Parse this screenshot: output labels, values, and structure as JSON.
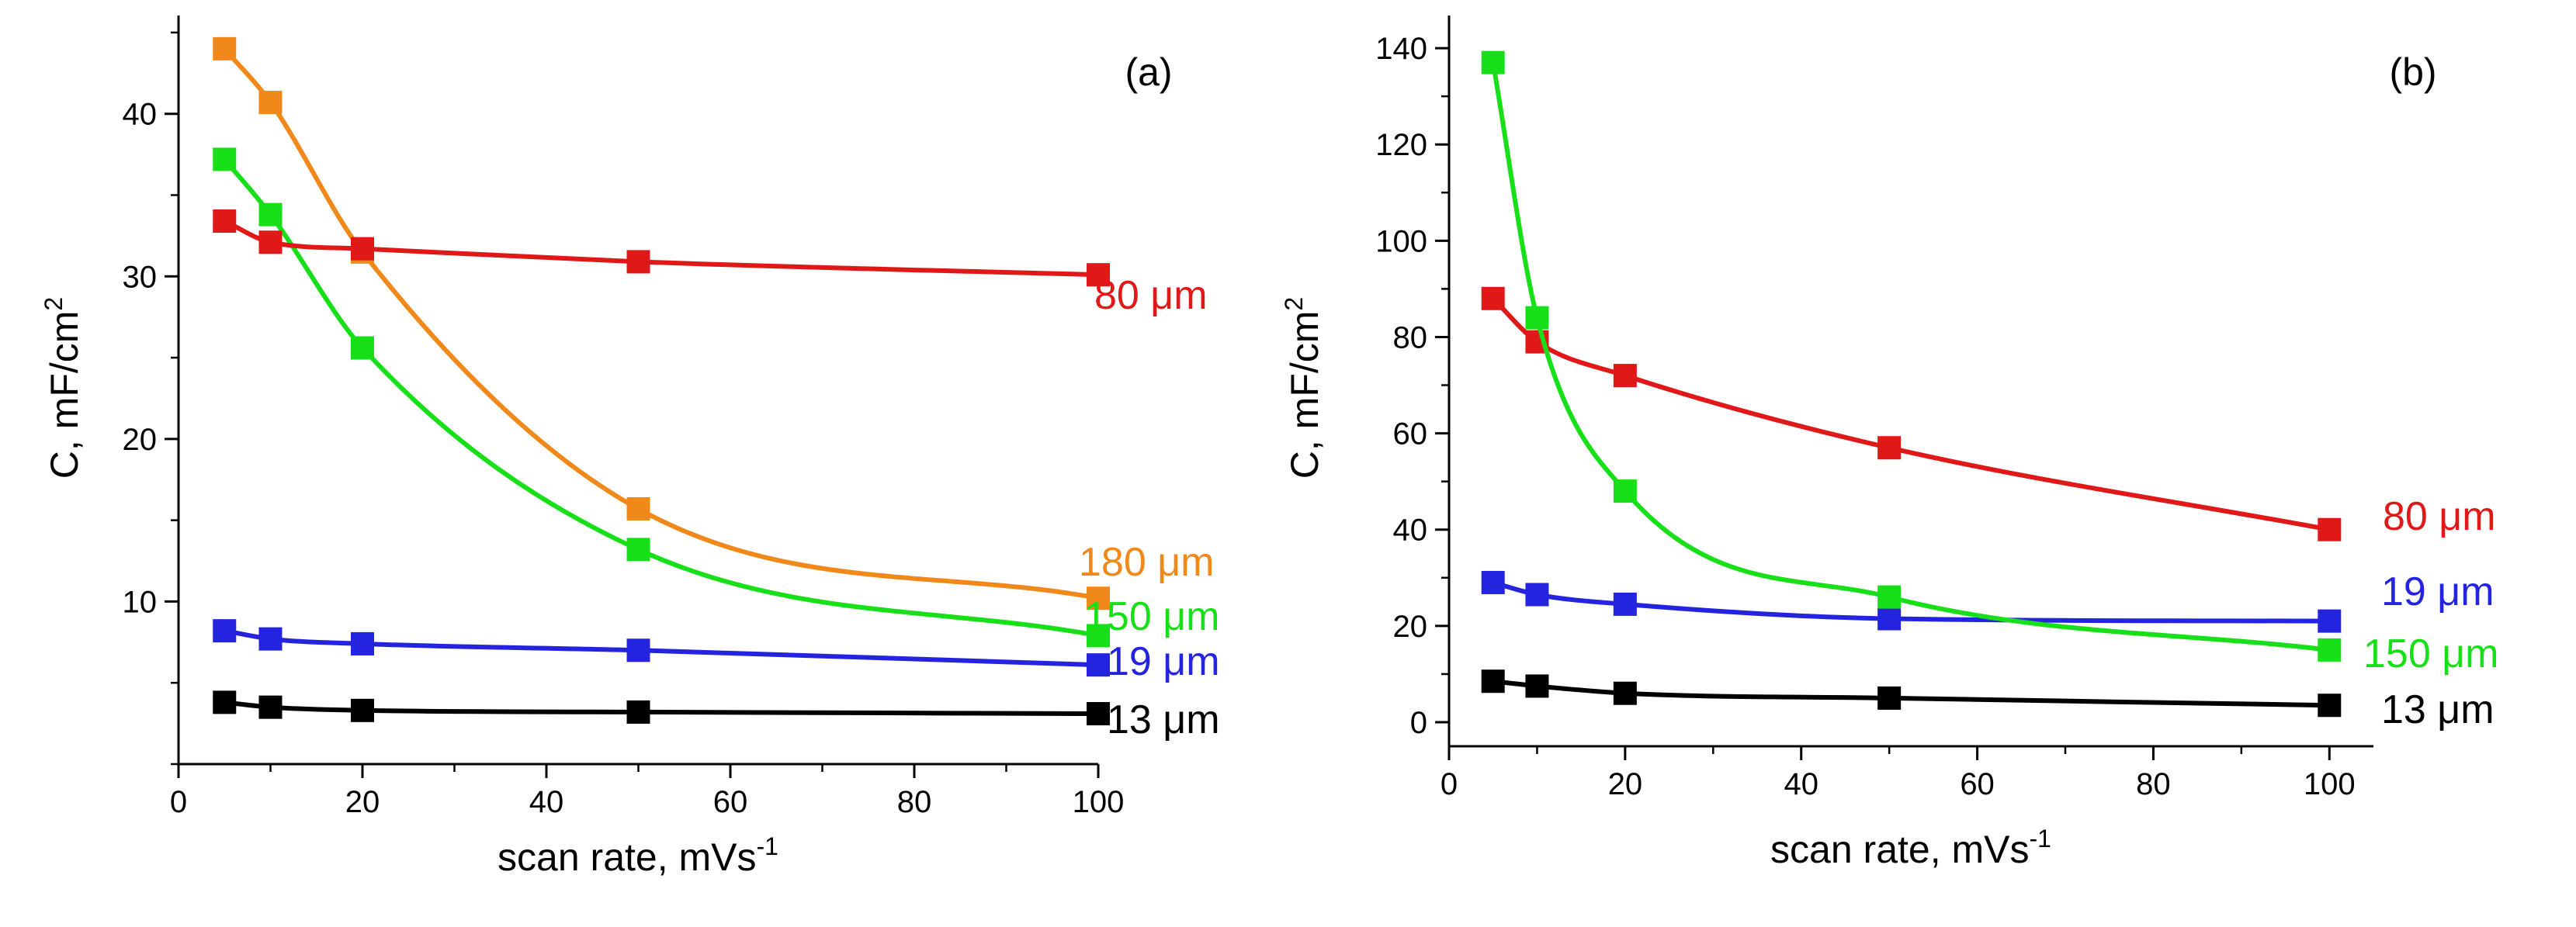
{
  "chart_data": [
    {
      "type": "scatter",
      "panel_label": "(a)",
      "xlabel": "scan rate, mVs",
      "xlabel_sup": "-1",
      "ylabel": "C, mF/cm",
      "ylabel_sup": "2",
      "xlim": [
        0,
        100
      ],
      "ylim": [
        0,
        47
      ],
      "xticks": [
        0,
        20,
        40,
        60,
        80,
        100
      ],
      "yticks": [
        10,
        20,
        30,
        40
      ],
      "series": [
        {
          "name": "180 μm",
          "color": "#f0891a",
          "x": [
            5,
            10,
            20,
            50,
            100
          ],
          "y": [
            44,
            40.7,
            31.5,
            15.7,
            10.2
          ]
        },
        {
          "name": "150 μm",
          "color": "#18e018",
          "x": [
            5,
            10,
            20,
            50,
            100
          ],
          "y": [
            37.2,
            33.8,
            25.6,
            13.2,
            7.9
          ]
        },
        {
          "name": "80 μm",
          "color": "#e01818",
          "x": [
            5,
            10,
            20,
            50,
            100
          ],
          "y": [
            33.4,
            32.1,
            31.7,
            30.9,
            30.1
          ]
        },
        {
          "name": "19 μm",
          "color": "#2424e0",
          "x": [
            5,
            10,
            20,
            50,
            100
          ],
          "y": [
            8.2,
            7.7,
            7.4,
            7.0,
            6.1
          ]
        },
        {
          "name": "13 μm",
          "color": "#000000",
          "x": [
            5,
            10,
            20,
            50,
            100
          ],
          "y": [
            3.8,
            3.5,
            3.3,
            3.2,
            3.1
          ]
        }
      ]
    },
    {
      "type": "scatter",
      "panel_label": "(b)",
      "xlabel": "scan rate, mVs",
      "xlabel_sup": "-1",
      "ylabel": "C, mF/cm",
      "ylabel_sup": "2",
      "xlim": [
        0,
        105
      ],
      "ylim": [
        -5,
        150
      ],
      "xticks": [
        0,
        20,
        40,
        60,
        80,
        100
      ],
      "yticks": [
        0,
        20,
        40,
        60,
        80,
        100,
        120,
        140
      ],
      "series": [
        {
          "name": "80 μm",
          "color": "#e01818",
          "x": [
            5,
            10,
            20,
            50,
            100
          ],
          "y": [
            88,
            79,
            72,
            57,
            40
          ]
        },
        {
          "name": "19 μm",
          "color": "#2424e0",
          "x": [
            5,
            10,
            20,
            50,
            100
          ],
          "y": [
            29,
            26.5,
            24.5,
            21.5,
            21
          ]
        },
        {
          "name": "150 μm",
          "color": "#18e018",
          "x": [
            5,
            10,
            20,
            50,
            100
          ],
          "y": [
            137,
            84,
            48,
            26,
            15
          ]
        },
        {
          "name": "13 μm",
          "color": "#000000",
          "x": [
            5,
            10,
            20,
            50,
            100
          ],
          "y": [
            8.5,
            7.5,
            6,
            5,
            3.5
          ]
        }
      ]
    }
  ]
}
